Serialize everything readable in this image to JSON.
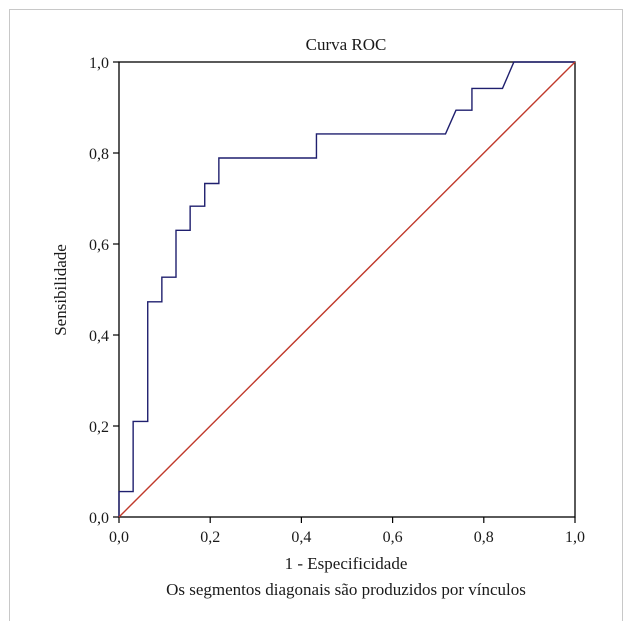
{
  "chart_data": {
    "type": "line",
    "title": "Curva ROC",
    "xlabel": "1 - Especificidade",
    "ylabel": "Sensibilidade",
    "footnote": "Os segmentos diagonais são produzidos por vínculos",
    "xlim": [
      0,
      1
    ],
    "ylim": [
      0,
      1
    ],
    "xticks": [
      "0,0",
      "0,2",
      "0,4",
      "0,6",
      "0,8",
      "1,0"
    ],
    "yticks": [
      "0,0",
      "0,2",
      "0,4",
      "0,6",
      "0,8",
      "1,0"
    ],
    "grid": false,
    "series": [
      {
        "color": "#1f1f6e",
        "points": [
          [
            0.0,
            0.0
          ],
          [
            0.0,
            0.056
          ],
          [
            0.031,
            0.056
          ],
          [
            0.031,
            0.21
          ],
          [
            0.063,
            0.21
          ],
          [
            0.063,
            0.473
          ],
          [
            0.094,
            0.473
          ],
          [
            0.094,
            0.527
          ],
          [
            0.125,
            0.527
          ],
          [
            0.125,
            0.63
          ],
          [
            0.156,
            0.63
          ],
          [
            0.156,
            0.683
          ],
          [
            0.188,
            0.683
          ],
          [
            0.188,
            0.733
          ],
          [
            0.219,
            0.733
          ],
          [
            0.219,
            0.789
          ],
          [
            0.433,
            0.789
          ],
          [
            0.433,
            0.842
          ],
          [
            0.716,
            0.842
          ],
          [
            0.739,
            0.894
          ],
          [
            0.774,
            0.894
          ],
          [
            0.774,
            0.942
          ],
          [
            0.841,
            0.942
          ],
          [
            0.866,
            1.0
          ],
          [
            1.0,
            1.0
          ]
        ]
      },
      {
        "color": "#c0392b",
        "points": [
          [
            0,
            0
          ],
          [
            1,
            1
          ]
        ]
      }
    ]
  }
}
